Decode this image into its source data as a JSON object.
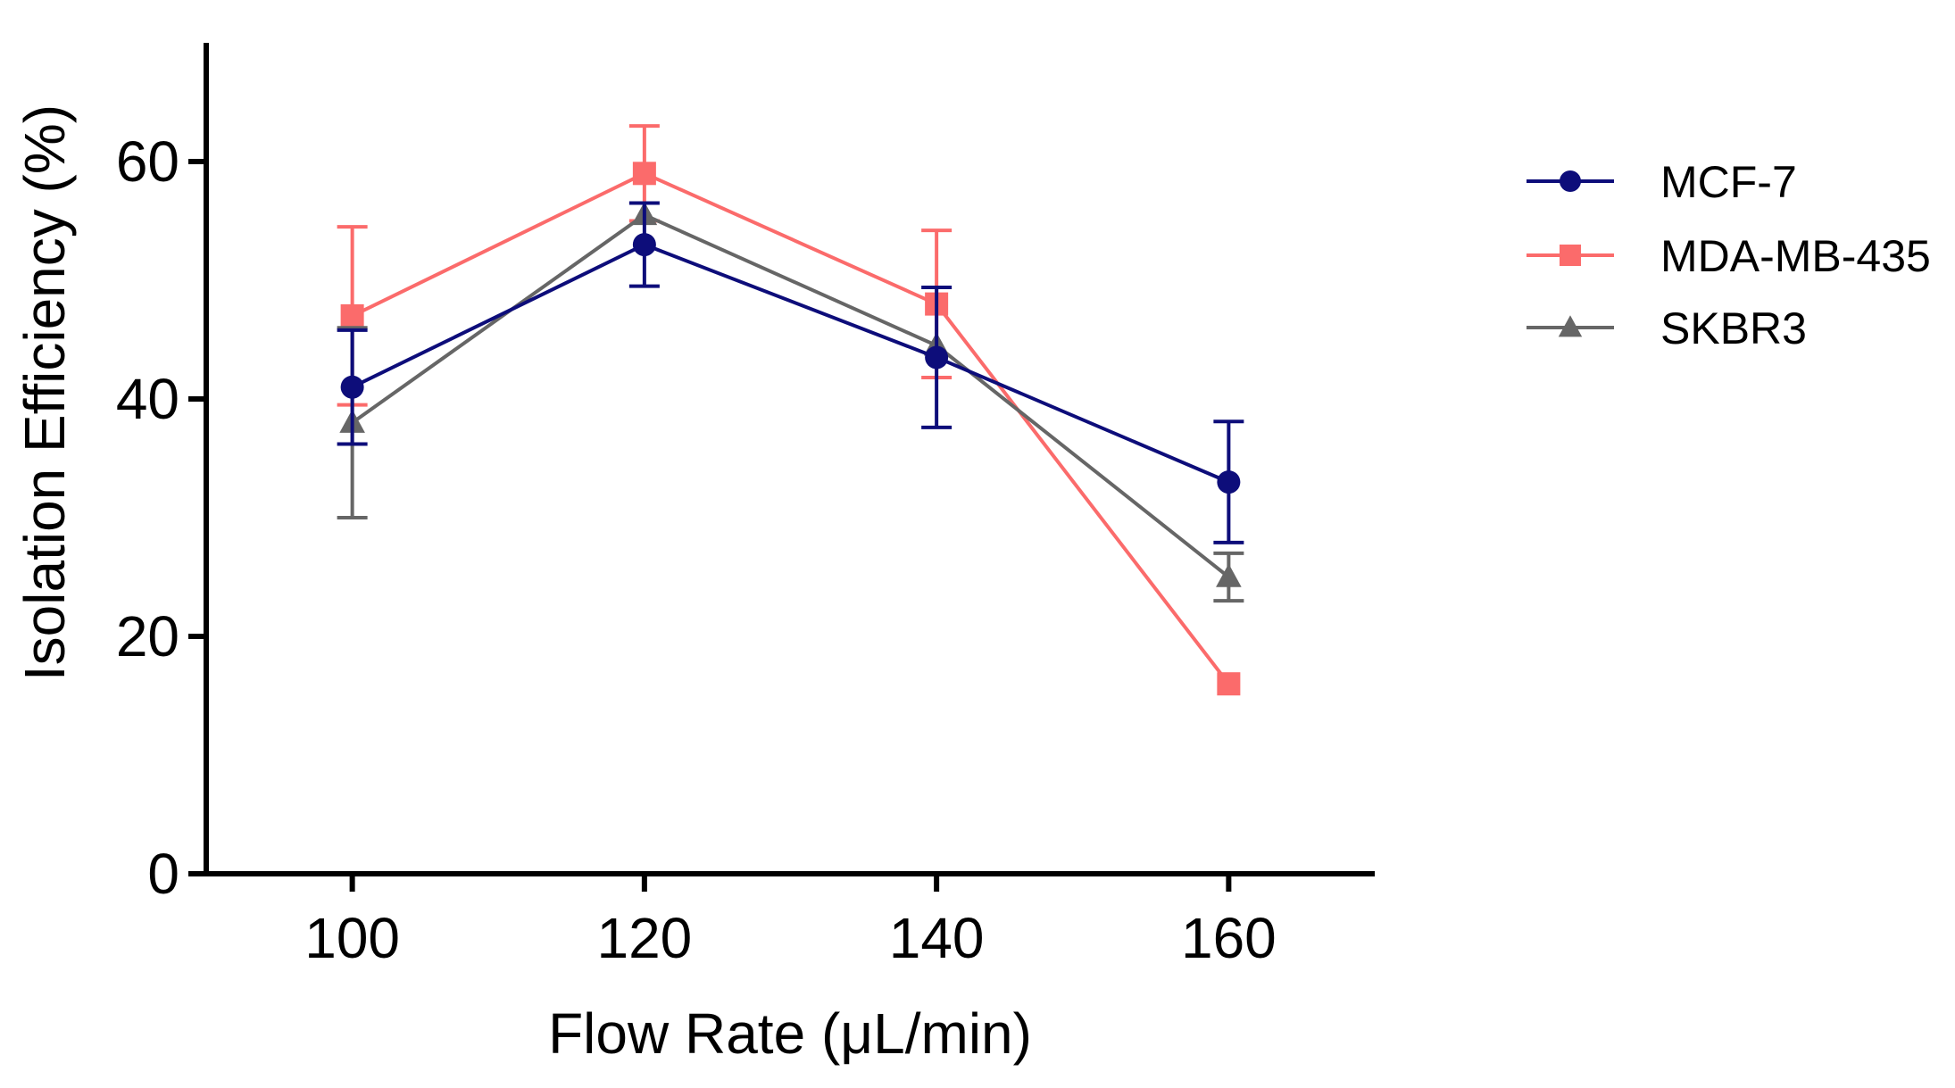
{
  "chart_data": {
    "type": "line",
    "title": "",
    "xlabel": "Flow Rate (μL/min)",
    "ylabel": "Isolation Efficiency (%)",
    "x": [
      100,
      120,
      140,
      160
    ],
    "xlim": [
      90,
      170
    ],
    "ylim": [
      0,
      70
    ],
    "xticks": [
      "100",
      "120",
      "140",
      "160"
    ],
    "yticks": [
      "0",
      "20",
      "40",
      "60"
    ],
    "grid": false,
    "legend_position": "top-right",
    "series": [
      {
        "name": "MCF-7",
        "color": "#0d0d7a",
        "marker": "circle",
        "values": [
          41,
          53,
          43.5,
          33
        ],
        "errors": [
          4.8,
          3.5,
          5.9,
          5.1
        ]
      },
      {
        "name": "MDA-MB-435",
        "color": "#fb6b6b",
        "marker": "square",
        "values": [
          47,
          59,
          48,
          16
        ],
        "errors": [
          7.5,
          4,
          6.2,
          0
        ]
      },
      {
        "name": "SKBR3",
        "color": "#666666",
        "marker": "triangle",
        "values": [
          38,
          55.5,
          44.5,
          25
        ],
        "errors": [
          8,
          0,
          0,
          2
        ]
      }
    ]
  }
}
